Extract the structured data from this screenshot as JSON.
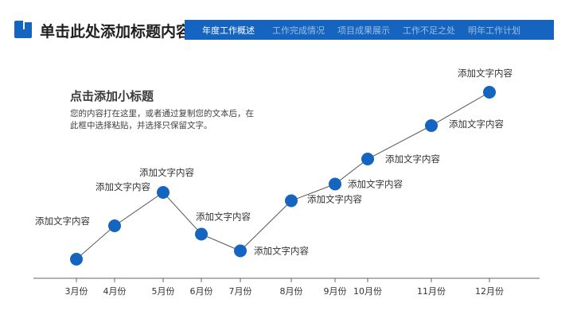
{
  "header": {
    "title": "单击此处添加标题内容",
    "nav_items": [
      "年度工作概述",
      "工作完成情况",
      "项目成果展示",
      "工作不足之处",
      "明年工作计划"
    ],
    "active_index": 0
  },
  "text_block": {
    "subtitle": "点击添加小标题",
    "body": "您的内容打在这里，或者通过复制您的文本后，在此框中选择粘贴，并选择只保留文字。"
  },
  "colors": {
    "accent": "#1565c0",
    "line": "#555555",
    "axis": "#666666"
  },
  "chart_data": {
    "type": "line",
    "categories": [
      "3月份",
      "4月份",
      "5月份",
      "6月份",
      "7月份",
      "8月份",
      "9月份",
      "10月份",
      "11月份",
      "12月份"
    ],
    "series": [
      {
        "values": [
          1,
          3,
          5,
          2.5,
          1.5,
          4.5,
          5.5,
          7,
          9,
          11
        ],
        "point_labels": [
          "添加文字内容",
          "添加文字内容",
          "添加文字内容",
          "添加文字内容",
          "添加文字内容",
          "添加文字内容",
          "添加文字内容",
          "添加文字内容",
          "添加文字内容",
          "添加文字内容"
        ]
      }
    ],
    "title": "",
    "xlabel": "",
    "ylabel": "",
    "grid": false,
    "legend": "none"
  }
}
